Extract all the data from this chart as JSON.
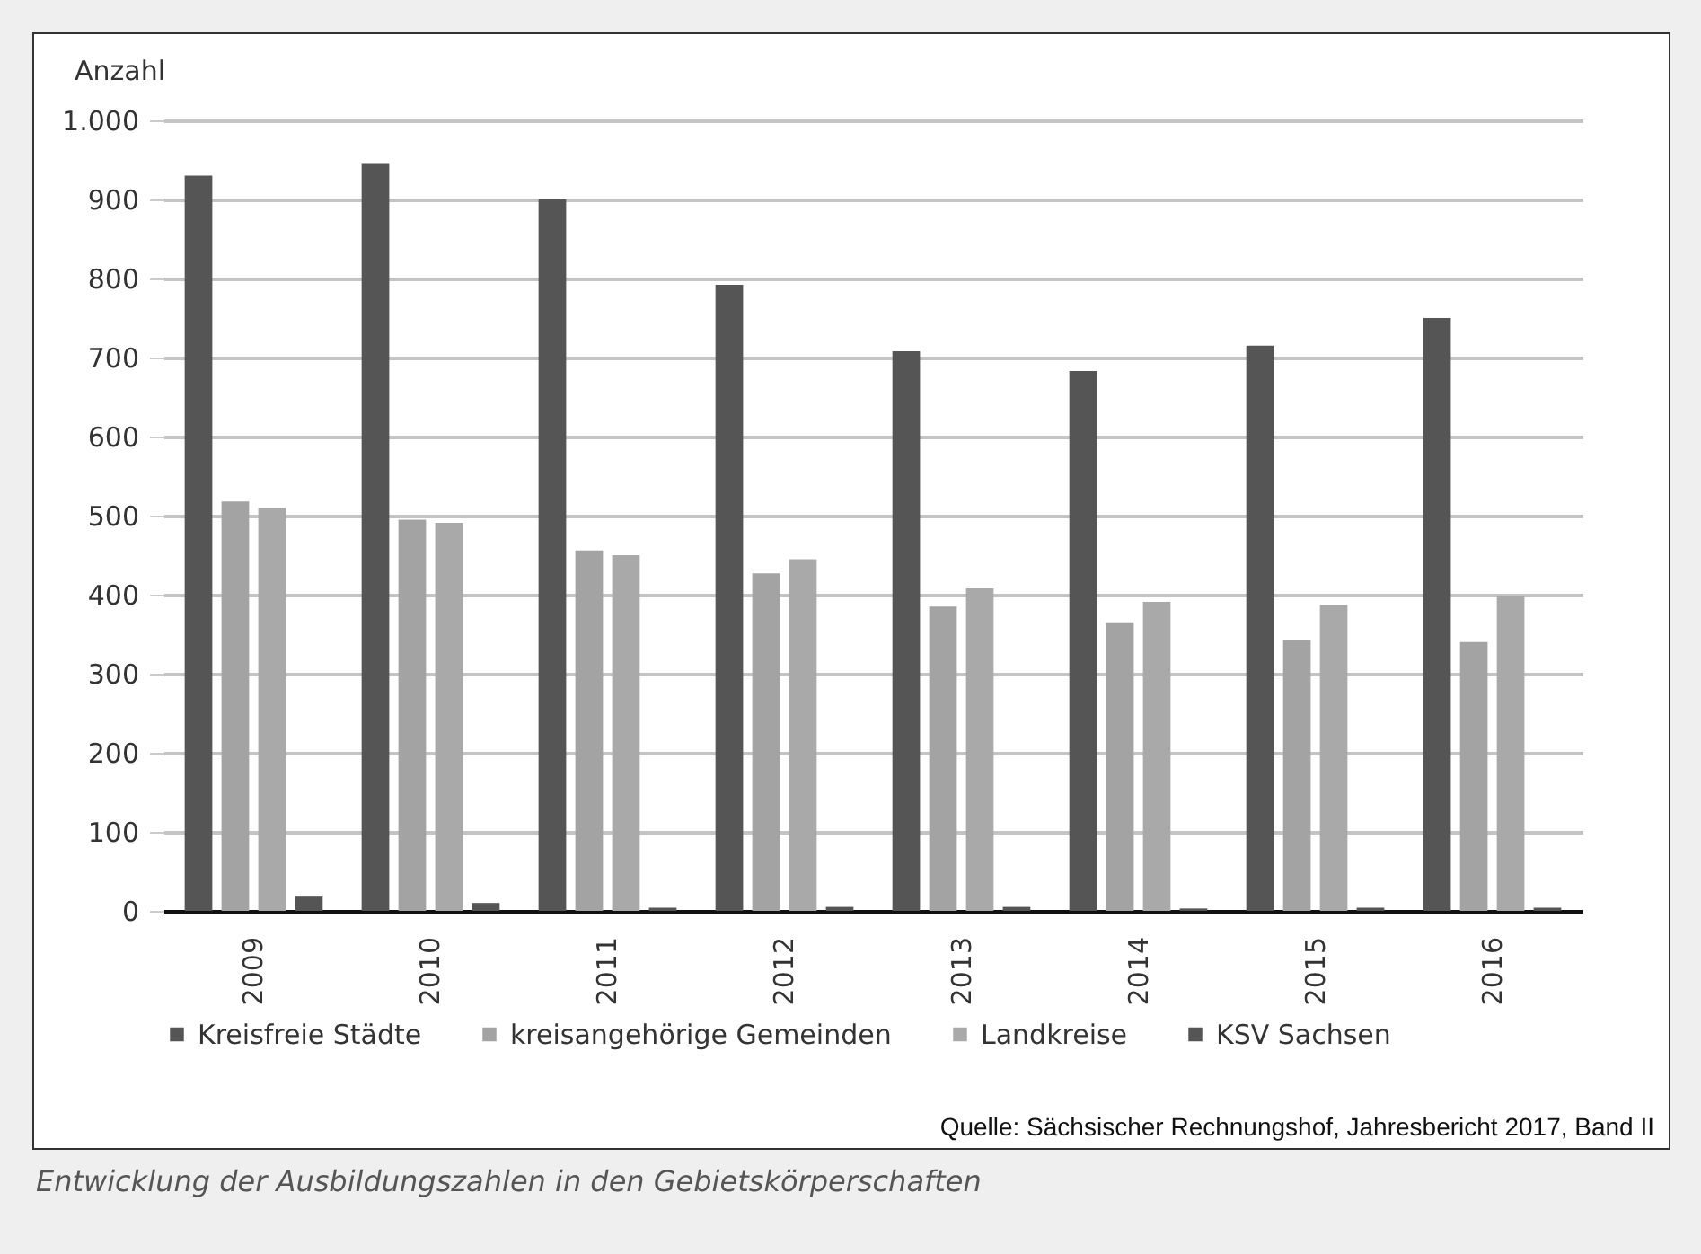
{
  "chart_data": {
    "type": "bar",
    "ylabel": "Anzahl",
    "categories": [
      "2009",
      "2010",
      "2011",
      "2012",
      "2013",
      "2014",
      "2015",
      "2016"
    ],
    "series": [
      {
        "name": "Kreisfreie Städte",
        "color": "#555555",
        "values": [
          930,
          945,
          900,
          792,
          708,
          683,
          715,
          750
        ]
      },
      {
        "name": "kreisangehörige Gemeinden",
        "color": "#a3a3a3",
        "values": [
          518,
          495,
          456,
          427,
          385,
          365,
          343,
          340
        ]
      },
      {
        "name": "Landkreise",
        "color": "#a9a9a9",
        "values": [
          510,
          491,
          450,
          445,
          408,
          391,
          387,
          398
        ]
      },
      {
        "name": "KSV Sachsen",
        "color": "#555555",
        "values": [
          18,
          10,
          4,
          5,
          5,
          3,
          4,
          4
        ]
      }
    ],
    "ylim": [
      0,
      1000
    ],
    "yticks": [
      0,
      100,
      200,
      300,
      400,
      500,
      600,
      700,
      800,
      900,
      {
        "value": 1000,
        "label": "1.000"
      }
    ],
    "grid": "y",
    "legend": "bottom",
    "annotations": [
      "Quelle: Sächsischer Rechnungshof, Jahresbericht 2017, Band II",
      "Entwicklung der Ausbildungszahlen in den Gebietskörperschaften"
    ]
  }
}
